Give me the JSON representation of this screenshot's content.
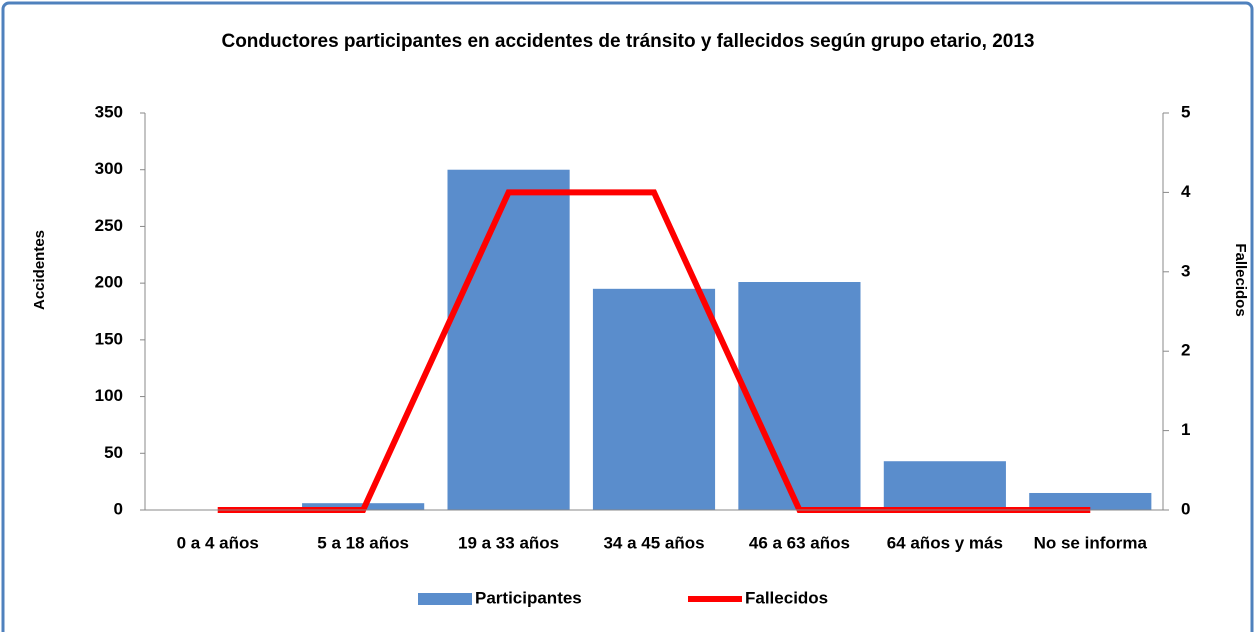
{
  "chart_data": {
    "type": "bar_line",
    "title": "Conductores participantes en accidentes de tránsito y fallecidos según grupo etario, 2013",
    "ylabel": "Accidentes",
    "y2label": "Fallecidos",
    "categories": [
      "0 a 4 años",
      "5 a 18 años",
      "19 a 33 años",
      "34 a 45 años",
      "46 a 63 años",
      "64 años y más",
      "No se informa"
    ],
    "series": [
      {
        "name": "Participantes",
        "type": "bar",
        "color": "#5a8dcc",
        "values": [
          0,
          6,
          300,
          195,
          201,
          43,
          15
        ]
      },
      {
        "name": "Fallecidos",
        "type": "line",
        "color": "#ff0000",
        "axis": "y2",
        "values": [
          0,
          0,
          4,
          4,
          0,
          0,
          0
        ]
      }
    ],
    "ylim": [
      0,
      350
    ],
    "yticks": [
      0,
      50,
      100,
      150,
      200,
      250,
      300,
      350
    ],
    "y2lim": [
      0,
      5
    ],
    "y2ticks": [
      0,
      1,
      2,
      3,
      4,
      5
    ],
    "grid": false,
    "legend": "bottom"
  }
}
